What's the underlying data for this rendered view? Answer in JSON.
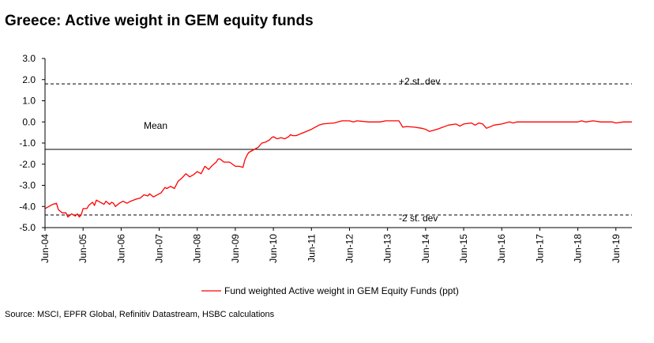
{
  "chart_data": {
    "type": "line",
    "title": "Greece: Active weight in GEM equity funds",
    "xlabel": "",
    "ylabel": "",
    "ylim": [
      -5.0,
      3.0
    ],
    "yticks": [
      "3.0",
      "2.0",
      "1.0",
      "0.0",
      "-1.0",
      "-2.0",
      "-3.0",
      "-4.0",
      "-5.0"
    ],
    "ytick_values": [
      3,
      2,
      1,
      0,
      -1,
      -2,
      -3,
      -4,
      -5
    ],
    "x_range": [
      2004.0,
      2019.42
    ],
    "xtick_labels": [
      "Jun-04",
      "Jun-05",
      "Jun-06",
      "Jun-07",
      "Jun-08",
      "Jun-09",
      "Jun-10",
      "Jun-11",
      "Jun-12",
      "Jun-13",
      "Jun-14",
      "Jun-15",
      "Jun-16",
      "Jun-17",
      "Jun-18",
      "Jun-19"
    ],
    "xtick_positions": [
      2004.0,
      2005.0,
      2006.0,
      2007.0,
      2008.0,
      2009.0,
      2010.0,
      2011.0,
      2012.0,
      2013.0,
      2014.0,
      2015.0,
      2016.0,
      2017.0,
      2018.0,
      2019.0
    ],
    "reference_lines": [
      {
        "name": "plus-2-std",
        "label": "+2 st. dev",
        "value": 1.8,
        "style": "dashed"
      },
      {
        "name": "mean",
        "label": "Mean",
        "value": -1.3,
        "style": "solid"
      },
      {
        "name": "minus-2-std",
        "label": "-2 st. dev",
        "value": -4.4,
        "style": "dashed"
      }
    ],
    "series": [
      {
        "name": "Fund weighted Active weight in GEM Equity Funds (ppt)",
        "color": "#ff0000",
        "x": [
          2004.0,
          2004.1,
          2004.2,
          2004.3,
          2004.35,
          2004.45,
          2004.55,
          2004.6,
          2004.7,
          2004.75,
          2004.8,
          2004.85,
          2004.9,
          2004.95,
          2005.0,
          2005.1,
          2005.15,
          2005.25,
          2005.3,
          2005.35,
          2005.45,
          2005.55,
          2005.6,
          2005.7,
          2005.75,
          2005.8,
          2005.85,
          2005.95,
          2006.05,
          2006.15,
          2006.25,
          2006.4,
          2006.5,
          2006.6,
          2006.7,
          2006.75,
          2006.85,
          2007.0,
          2007.05,
          2007.15,
          2007.2,
          2007.3,
          2007.4,
          2007.5,
          2007.6,
          2007.7,
          2007.8,
          2007.9,
          2008.0,
          2008.1,
          2008.2,
          2008.3,
          2008.4,
          2008.5,
          2008.55,
          2008.6,
          2008.7,
          2008.85,
          2009.0,
          2009.1,
          2009.2,
          2009.25,
          2009.3,
          2009.35,
          2009.5,
          2009.6,
          2009.7,
          2009.8,
          2009.9,
          2009.95,
          2010.0,
          2010.1,
          2010.2,
          2010.3,
          2010.4,
          2010.45,
          2010.5,
          2010.6,
          2010.8,
          2011.0,
          2011.2,
          2011.3,
          2011.4,
          2011.6,
          2011.8,
          2012.0,
          2012.1,
          2012.2,
          2012.5,
          2012.8,
          2012.95,
          2013.0,
          2013.3,
          2013.4,
          2013.5,
          2013.7,
          2013.9,
          2014.0,
          2014.1,
          2014.3,
          2014.6,
          2014.8,
          2014.9,
          2015.0,
          2015.2,
          2015.3,
          2015.4,
          2015.5,
          2015.6,
          2015.8,
          2016.0,
          2016.2,
          2016.3,
          2016.4,
          2016.5,
          2016.8,
          2017.0,
          2017.5,
          2017.8,
          2018.0,
          2018.1,
          2018.2,
          2018.4,
          2018.6,
          2018.8,
          2018.9,
          2019.0,
          2019.2,
          2019.42
        ],
        "y": [
          -4.1,
          -4.0,
          -3.9,
          -3.85,
          -4.15,
          -4.3,
          -4.3,
          -4.5,
          -4.35,
          -4.4,
          -4.45,
          -4.35,
          -4.5,
          -4.4,
          -4.1,
          -4.1,
          -3.95,
          -3.8,
          -3.95,
          -3.7,
          -3.8,
          -3.9,
          -3.75,
          -3.9,
          -3.8,
          -3.85,
          -4.0,
          -3.85,
          -3.75,
          -3.85,
          -3.75,
          -3.65,
          -3.6,
          -3.45,
          -3.5,
          -3.4,
          -3.55,
          -3.4,
          -3.35,
          -3.1,
          -3.15,
          -3.05,
          -3.15,
          -2.8,
          -2.65,
          -2.45,
          -2.6,
          -2.5,
          -2.35,
          -2.45,
          -2.1,
          -2.25,
          -2.05,
          -1.9,
          -1.75,
          -1.75,
          -1.9,
          -1.9,
          -2.1,
          -2.1,
          -2.15,
          -1.8,
          -1.6,
          -1.45,
          -1.3,
          -1.2,
          -1.0,
          -0.95,
          -0.85,
          -0.75,
          -0.7,
          -0.8,
          -0.75,
          -0.8,
          -0.7,
          -0.6,
          -0.65,
          -0.65,
          -0.5,
          -0.35,
          -0.15,
          -0.1,
          -0.08,
          -0.05,
          0.05,
          0.05,
          0.0,
          0.05,
          0.0,
          0.0,
          0.05,
          0.05,
          0.05,
          -0.25,
          -0.22,
          -0.25,
          -0.3,
          -0.35,
          -0.45,
          -0.35,
          -0.15,
          -0.1,
          -0.2,
          -0.1,
          -0.05,
          -0.15,
          -0.05,
          -0.1,
          -0.3,
          -0.15,
          -0.1,
          0.0,
          -0.05,
          0.0,
          0.0,
          0.0,
          0.0,
          0.0,
          0.0,
          0.0,
          0.05,
          0.0,
          0.05,
          0.0,
          0.0,
          0.0,
          -0.05,
          0.0,
          0.0
        ]
      }
    ],
    "legend": "bottom-center"
  },
  "source_text": "Source: MSCI, EPFR Global, Refinitiv Datastream, HSBC calculations"
}
